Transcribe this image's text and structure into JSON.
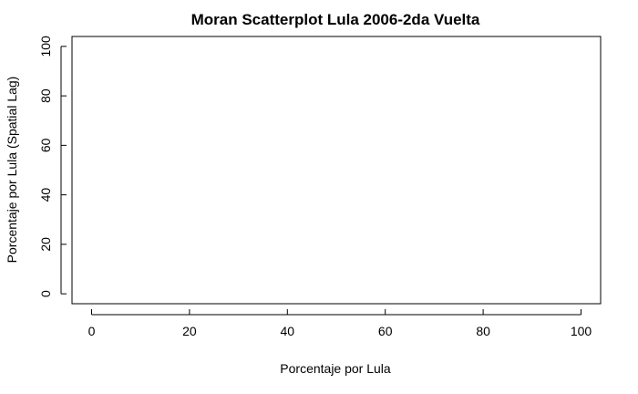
{
  "chart_data": {
    "type": "scatter",
    "title": "Moran Scatterplot Lula 2006-2da Vuelta",
    "xlabel": "Porcentaje por Lula",
    "ylabel": "Porcentaje por Lula (Spatial Lag)",
    "xlim": [
      -4,
      104
    ],
    "ylim": [
      -4,
      104
    ],
    "xticks": [
      "0",
      "20",
      "40",
      "60",
      "80",
      "100"
    ],
    "yticks": [
      "0",
      "20",
      "40",
      "60",
      "80",
      "100"
    ],
    "points": [],
    "grid": false,
    "colors": {
      "axis": "#000000",
      "background": "#ffffff"
    }
  }
}
